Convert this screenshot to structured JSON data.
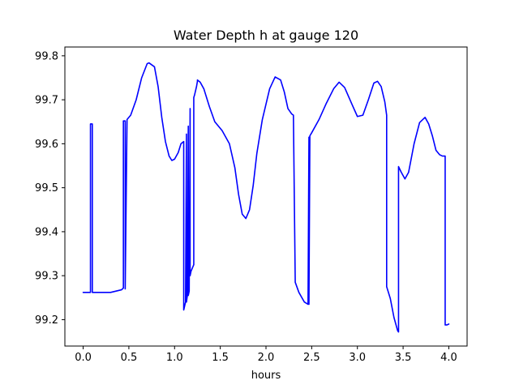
{
  "chart_data": {
    "type": "line",
    "title": "Water Depth h at gauge 120",
    "xlabel": "hours",
    "ylabel": "",
    "xlim": [
      -0.2,
      4.2
    ],
    "ylim": [
      99.14,
      99.82
    ],
    "xticks": [
      0.0,
      0.5,
      1.0,
      1.5,
      2.0,
      2.5,
      3.0,
      3.5,
      4.0
    ],
    "xtick_labels": [
      "0.0",
      "0.5",
      "1.0",
      "1.5",
      "2.0",
      "2.5",
      "3.0",
      "3.5",
      "4.0"
    ],
    "yticks": [
      99.2,
      99.3,
      99.4,
      99.5,
      99.6,
      99.7,
      99.8
    ],
    "ytick_labels": [
      "99.2",
      "99.3",
      "99.4",
      "99.5",
      "99.6",
      "99.7",
      "99.8"
    ],
    "grid": false,
    "series": [
      {
        "color": "#0000ff",
        "x": [
          0.0,
          0.08,
          0.08,
          0.1,
          0.1,
          0.3,
          0.42,
          0.44,
          0.44,
          0.46,
          0.46,
          0.48,
          0.52,
          0.58,
          0.64,
          0.7,
          0.72,
          0.78,
          0.82,
          0.86,
          0.9,
          0.94,
          0.97,
          1.0,
          1.04,
          1.07,
          1.1,
          1.1,
          1.12,
          1.13,
          1.13,
          1.14,
          1.15,
          1.15,
          1.16,
          1.17,
          1.17,
          1.18,
          1.21,
          1.21,
          1.22,
          1.22,
          1.24,
          1.25,
          1.25,
          1.28,
          1.32,
          1.38,
          1.44,
          1.52,
          1.6,
          1.66,
          1.7,
          1.74,
          1.78,
          1.82,
          1.86,
          1.9,
          1.96,
          2.04,
          2.1,
          2.16,
          2.2,
          2.24,
          2.28,
          2.3,
          2.32,
          2.32,
          2.36,
          2.42,
          2.46,
          2.47,
          2.47,
          2.48,
          2.48,
          2.5,
          2.58,
          2.66,
          2.74,
          2.8,
          2.86,
          2.94,
          3.0,
          3.06,
          3.12,
          3.18,
          3.22,
          3.26,
          3.3,
          3.32,
          3.32,
          3.36,
          3.4,
          3.44,
          3.45,
          3.45,
          3.48,
          3.52,
          3.56,
          3.62,
          3.68,
          3.74,
          3.78,
          3.82,
          3.86,
          3.9,
          3.93,
          3.96,
          3.96,
          3.98,
          4.0
        ],
        "y": [
          99.262,
          99.262,
          99.645,
          99.645,
          99.262,
          99.262,
          99.268,
          99.272,
          99.652,
          99.652,
          99.27,
          99.655,
          99.665,
          99.7,
          99.75,
          99.782,
          99.784,
          99.775,
          99.73,
          99.66,
          99.605,
          99.572,
          99.562,
          99.565,
          99.58,
          99.6,
          99.605,
          99.222,
          99.24,
          99.622,
          99.24,
          99.255,
          99.64,
          99.255,
          99.265,
          99.68,
          99.3,
          99.31,
          99.325,
          99.705,
          99.712,
          99.712,
          99.73,
          99.742,
          99.745,
          99.74,
          99.725,
          99.685,
          99.65,
          99.63,
          99.6,
          99.545,
          99.485,
          99.44,
          99.43,
          99.45,
          99.505,
          99.578,
          99.655,
          99.725,
          99.752,
          99.745,
          99.718,
          99.68,
          99.668,
          99.665,
          99.285,
          99.285,
          99.262,
          99.24,
          99.235,
          99.615,
          99.235,
          99.618,
          99.618,
          99.625,
          99.655,
          99.692,
          99.725,
          99.74,
          99.728,
          99.69,
          99.662,
          99.665,
          99.7,
          99.738,
          99.742,
          99.73,
          99.695,
          99.665,
          99.275,
          99.248,
          99.205,
          99.175,
          99.172,
          99.548,
          99.535,
          99.52,
          99.535,
          99.6,
          99.648,
          99.66,
          99.645,
          99.618,
          99.585,
          99.575,
          99.572,
          99.572,
          99.188,
          99.188,
          99.19
        ]
      }
    ]
  }
}
